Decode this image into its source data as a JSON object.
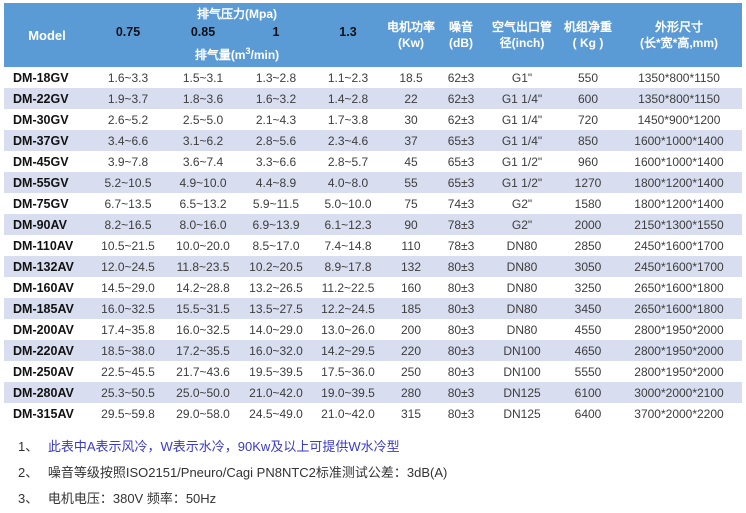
{
  "header": {
    "model_label": "Model",
    "pressure_group": {
      "title": "排气压力(Mpa)",
      "values": [
        "0.75",
        "0.85",
        "1",
        "1.3"
      ],
      "flow_prefix": "排气量(m",
      "flow_sup": "3",
      "flow_suffix": "/min)"
    },
    "columns": [
      {
        "line1": "电机功率",
        "line2": "(Kw)"
      },
      {
        "line1": "噪音",
        "line2": "(dB)"
      },
      {
        "line1": "空气出口管",
        "line2": "径(inch)"
      },
      {
        "line1": "机组净重",
        "line2": "( Kg )"
      },
      {
        "line1": "外形尺寸",
        "line2": "(长*宽*高,mm)"
      }
    ]
  },
  "table": {
    "rows": [
      {
        "model": "DM-18GV",
        "flows": [
          "1.6~3.3",
          "1.5~3.1",
          "1.3~2.8",
          "1.1~2.3"
        ],
        "power": "18.5",
        "noise": "62±3",
        "outlet": "G1\"",
        "weight": "550",
        "dims": "1350*800*1150"
      },
      {
        "model": "DM-22GV",
        "flows": [
          "1.9~3.7",
          "1.8~3.6",
          "1.6~3.2",
          "1.4~2.8"
        ],
        "power": "22",
        "noise": "62±3",
        "outlet": "G1 1/4\"",
        "weight": "600",
        "dims": "1350*800*1150"
      },
      {
        "model": "DM-30GV",
        "flows": [
          "2.6~5.2",
          "2.5~5.0",
          "2.1~4.3",
          "1.7~3.8"
        ],
        "power": "30",
        "noise": "62±3",
        "outlet": "G1 1/4\"",
        "weight": "720",
        "dims": "1450*900*1200"
      },
      {
        "model": "DM-37GV",
        "flows": [
          "3.4~6.6",
          "3.1~6.2",
          "2.8~5.6",
          "2.3~4.6"
        ],
        "power": "37",
        "noise": "65±3",
        "outlet": "G1 1/4\"",
        "weight": "850",
        "dims": "1600*1000*1400"
      },
      {
        "model": "DM-45GV",
        "flows": [
          "3.9~7.8",
          "3.6~7.4",
          "3.3~6.6",
          "2.8~5.7"
        ],
        "power": "45",
        "noise": "65±3",
        "outlet": "G1 1/2\"",
        "weight": "960",
        "dims": "1600*1000*1400"
      },
      {
        "model": "DM-55GV",
        "flows": [
          "5.2~10.5",
          "4.9~10.0",
          "4.4~8.9",
          "4.0~8.0"
        ],
        "power": "55",
        "noise": "65±3",
        "outlet": "G1 1/2\"",
        "weight": "1270",
        "dims": "1800*1200*1400"
      },
      {
        "model": "DM-75GV",
        "flows": [
          "6.7~13.5",
          "6.5~13.2",
          "5.9~11.5",
          "5.0~10.0"
        ],
        "power": "75",
        "noise": "74±3",
        "outlet": "G2\"",
        "weight": "1580",
        "dims": "1800*1200*1400"
      },
      {
        "model": "DM-90AV",
        "flows": [
          "8.2~16.5",
          "8.0~16.0",
          "6.9~13.9",
          "6.1~12.3"
        ],
        "power": "90",
        "noise": "78±3",
        "outlet": "G2\"",
        "weight": "2000",
        "dims": "2150*1300*1550"
      },
      {
        "model": "DM-110AV",
        "flows": [
          "10.5~21.5",
          "10.0~20.0",
          "8.5~17.0",
          "7.4~14.8"
        ],
        "power": "110",
        "noise": "78±3",
        "outlet": "DN80",
        "weight": "2850",
        "dims": "2450*1600*1700"
      },
      {
        "model": "DM-132AV",
        "flows": [
          "12.0~24.5",
          "11.8~23.5",
          "10.2~20.5",
          "8.9~17.8"
        ],
        "power": "132",
        "noise": "80±3",
        "outlet": "DN80",
        "weight": "3050",
        "dims": "2450*1600*1700"
      },
      {
        "model": "DM-160AV",
        "flows": [
          "14.5~29.0",
          "14.2~28.8",
          "13.2~26.5",
          "11.2~22.5"
        ],
        "power": "160",
        "noise": "80±3",
        "outlet": "DN80",
        "weight": "3250",
        "dims": "2650*1600*1800"
      },
      {
        "model": "DM-185AV",
        "flows": [
          "16.0~32.5",
          "15.5~31.5",
          "13.5~27.5",
          "12.2~24.5"
        ],
        "power": "185",
        "noise": "80±3",
        "outlet": "DN80",
        "weight": "3450",
        "dims": "2650*1600*1800"
      },
      {
        "model": "DM-200AV",
        "flows": [
          "17.4~35.8",
          "16.0~32.5",
          "14.0~29.0",
          "13.0~26.0"
        ],
        "power": "200",
        "noise": "80±3",
        "outlet": "DN80",
        "weight": "4550",
        "dims": "2800*1950*2000"
      },
      {
        "model": "DM-220AV",
        "flows": [
          "18.5~38.0",
          "17.2~35.5",
          "16.0~32.0",
          "14.2~29.5"
        ],
        "power": "220",
        "noise": "80±3",
        "outlet": "DN100",
        "weight": "4650",
        "dims": "2800*1950*2000"
      },
      {
        "model": "DM-250AV",
        "flows": [
          "22.5~45.5",
          "21.7~43.6",
          "19.5~39.5",
          "17.5~36.0"
        ],
        "power": "250",
        "noise": "80±3",
        "outlet": "DN100",
        "weight": "5550",
        "dims": "2800*1950*2000"
      },
      {
        "model": "DM-280AV",
        "flows": [
          "25.3~50.5",
          "25.0~50.0",
          "21.0~42.0",
          "19.0~39.5"
        ],
        "power": "280",
        "noise": "80±3",
        "outlet": "DN125",
        "weight": "6100",
        "dims": "3000*2000*2100"
      },
      {
        "model": "DM-315AV",
        "flows": [
          "29.5~59.8",
          "29.0~58.0",
          "24.5~49.0",
          "21.0~42.0"
        ],
        "power": "315",
        "noise": "80±3",
        "outlet": "DN125",
        "weight": "6400",
        "dims": "3700*2000*2200"
      }
    ]
  },
  "notes": [
    {
      "num": "1、",
      "text": "此表中A表示风冷，W表示水冷，90Kw及以上可提供W水冷型",
      "color": "#3A3AC8"
    },
    {
      "num": "2、",
      "text": "噪音等级按照ISO2151/Pneuro/Cagi PN8NTC2标准测试公差：3dB(A)"
    },
    {
      "num": "3、",
      "text": "电机电压：380V 频率：50Hz"
    }
  ],
  "colors": {
    "header_bg": "#5B9BD5",
    "stripe_bg": "#D8DDEF",
    "note_highlight": "#3A3AC8"
  }
}
